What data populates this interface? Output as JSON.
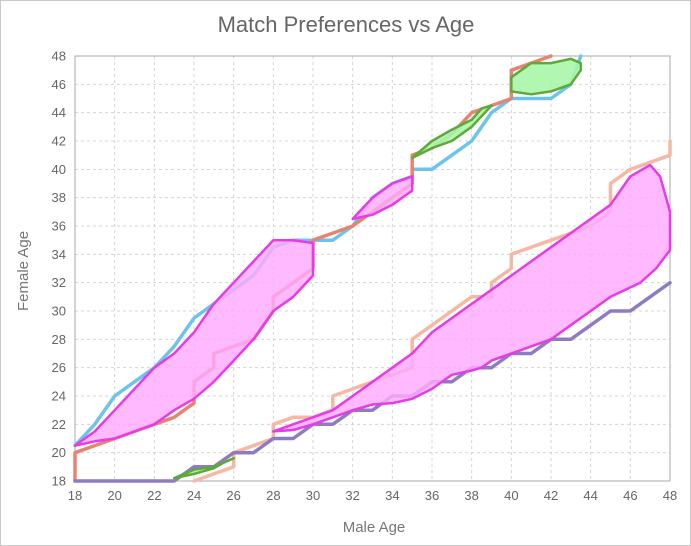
{
  "chart_data": {
    "type": "area",
    "title": "Match Preferences vs Age",
    "xlabel": "Male Age",
    "ylabel": "Female Age",
    "xlim": [
      18,
      48
    ],
    "ylim": [
      18,
      48
    ],
    "xticks": [
      18,
      20,
      22,
      24,
      26,
      28,
      30,
      32,
      34,
      36,
      38,
      40,
      42,
      44,
      46,
      48
    ],
    "yticks": [
      18,
      20,
      22,
      24,
      26,
      28,
      30,
      32,
      34,
      36,
      38,
      40,
      42,
      44,
      46,
      48
    ],
    "grid": true,
    "colors": {
      "blue": "#6ec3ec",
      "salmon_dark": "#e7836f",
      "salmon_light": "#f5b8a4",
      "purple": "#8e7cc3",
      "green_edge": "#5fa83a",
      "green_fill": "#a8f5a8",
      "magenta_edge": "#e63ce6",
      "magenta_fill": "#ffaaff"
    },
    "lines": [
      {
        "color_key": "blue",
        "points": [
          [
            18,
            20.5
          ],
          [
            19,
            22
          ],
          [
            20,
            24
          ],
          [
            21,
            25
          ],
          [
            22,
            26
          ],
          [
            23,
            27.5
          ],
          [
            24,
            29.5
          ],
          [
            25,
            30.5
          ],
          [
            26,
            31.5
          ],
          [
            27,
            32.5
          ],
          [
            28,
            34.5
          ],
          [
            29,
            35
          ],
          [
            30,
            35
          ],
          [
            31,
            35
          ],
          [
            32,
            36
          ],
          [
            33,
            38
          ],
          [
            34,
            39
          ],
          [
            35,
            39.5
          ]
        ]
      },
      {
        "color_key": "blue",
        "points": [
          [
            35,
            40
          ],
          [
            36,
            40
          ],
          [
            37,
            41
          ],
          [
            38,
            42
          ],
          [
            39,
            44
          ],
          [
            40,
            45
          ],
          [
            41,
            45
          ],
          [
            42,
            45
          ],
          [
            43,
            46
          ],
          [
            43.5,
            48
          ]
        ]
      },
      {
        "color_key": "salmon_dark",
        "points": [
          [
            18,
            18
          ],
          [
            18,
            20
          ],
          [
            19,
            20.5
          ],
          [
            20,
            21
          ],
          [
            21,
            21.5
          ],
          [
            22,
            22
          ],
          [
            23,
            22.5
          ],
          [
            24,
            23.5
          ],
          [
            24,
            25
          ],
          [
            25,
            26
          ],
          [
            25,
            27
          ],
          [
            26,
            27.5
          ],
          [
            27,
            28
          ],
          [
            28,
            30
          ],
          [
            28,
            31
          ],
          [
            29,
            32
          ],
          [
            30,
            33
          ],
          [
            30,
            35
          ],
          [
            31,
            35.5
          ],
          [
            32,
            36
          ],
          [
            33,
            37
          ],
          [
            34,
            38
          ],
          [
            35,
            39
          ],
          [
            35,
            41
          ],
          [
            36,
            41.5
          ],
          [
            37,
            42.5
          ],
          [
            38,
            44
          ],
          [
            39,
            44.5
          ],
          [
            40,
            45
          ],
          [
            40,
            47
          ],
          [
            41,
            47.5
          ],
          [
            42,
            48
          ]
        ]
      },
      {
        "color_key": "salmon_light",
        "points": [
          [
            24,
            18
          ],
          [
            25,
            18.5
          ],
          [
            26,
            19
          ],
          [
            26,
            20
          ],
          [
            27,
            20.5
          ],
          [
            28,
            21
          ],
          [
            28,
            22
          ],
          [
            29,
            22.5
          ],
          [
            30,
            22.5
          ],
          [
            31,
            23
          ],
          [
            31,
            24
          ],
          [
            32,
            24.5
          ],
          [
            33,
            25
          ],
          [
            34,
            25.5
          ],
          [
            35,
            26
          ],
          [
            35,
            28
          ],
          [
            36,
            29
          ],
          [
            37,
            30
          ],
          [
            38,
            31
          ],
          [
            39,
            31
          ],
          [
            39,
            32
          ],
          [
            40,
            33
          ],
          [
            40,
            34
          ],
          [
            41,
            34.5
          ],
          [
            42,
            35
          ],
          [
            43,
            35.5
          ],
          [
            44,
            36
          ],
          [
            45,
            37
          ],
          [
            45,
            39
          ],
          [
            46,
            40
          ],
          [
            47,
            40.5
          ],
          [
            48,
            41
          ],
          [
            48,
            42
          ]
        ]
      },
      {
        "color_key": "purple",
        "points": [
          [
            18,
            18
          ],
          [
            19,
            18
          ],
          [
            20,
            18
          ],
          [
            21,
            18
          ],
          [
            22,
            18
          ],
          [
            23,
            18
          ],
          [
            24,
            19
          ],
          [
            25,
            19
          ],
          [
            26,
            20
          ],
          [
            27,
            20
          ],
          [
            28,
            21
          ],
          [
            29,
            21
          ],
          [
            30,
            22
          ],
          [
            31,
            22
          ],
          [
            32,
            23
          ],
          [
            33,
            23
          ],
          [
            34,
            24
          ],
          [
            35,
            24
          ],
          [
            36,
            25
          ],
          [
            37,
            25
          ],
          [
            38,
            26
          ],
          [
            39,
            26
          ],
          [
            40,
            27
          ],
          [
            41,
            27
          ],
          [
            42,
            28
          ],
          [
            43,
            28
          ],
          [
            44,
            29
          ],
          [
            45,
            30
          ],
          [
            46,
            30
          ],
          [
            47,
            31
          ],
          [
            48,
            32
          ]
        ]
      }
    ],
    "regions": [
      {
        "kind": "magenta",
        "points": [
          [
            18,
            20.5
          ],
          [
            19,
            21.5
          ],
          [
            20,
            23
          ],
          [
            21,
            24.5
          ],
          [
            22,
            26
          ],
          [
            23,
            27
          ],
          [
            24,
            28.5
          ],
          [
            25,
            30.5
          ],
          [
            26,
            32
          ],
          [
            27,
            33.5
          ],
          [
            28,
            35
          ],
          [
            29,
            35
          ],
          [
            30,
            34.8
          ],
          [
            30,
            32.5
          ],
          [
            29,
            31
          ],
          [
            28,
            30
          ],
          [
            27,
            28
          ],
          [
            26,
            26.5
          ],
          [
            25,
            25
          ],
          [
            24,
            23.8
          ],
          [
            23,
            23
          ],
          [
            22,
            22
          ],
          [
            21,
            21.5
          ],
          [
            20,
            21
          ],
          [
            19,
            20.8
          ],
          [
            18,
            20.5
          ]
        ]
      },
      {
        "kind": "magenta",
        "points": [
          [
            28,
            21.5
          ],
          [
            29,
            22
          ],
          [
            30,
            22.5
          ],
          [
            31,
            23
          ],
          [
            32,
            24
          ],
          [
            33,
            25
          ],
          [
            34,
            26
          ],
          [
            35,
            27
          ],
          [
            36,
            28.5
          ],
          [
            37,
            29.5
          ],
          [
            38,
            30.5
          ],
          [
            39,
            31.5
          ],
          [
            40,
            32.5
          ],
          [
            41,
            33.5
          ],
          [
            42,
            34.5
          ],
          [
            43,
            35.5
          ],
          [
            44,
            36.5
          ],
          [
            45,
            37.5
          ],
          [
            46,
            39.5
          ],
          [
            47,
            40.3
          ],
          [
            47.5,
            39.5
          ],
          [
            48,
            37
          ],
          [
            48,
            34.3
          ],
          [
            47.3,
            33
          ],
          [
            46.5,
            32
          ],
          [
            45,
            31
          ],
          [
            44,
            30
          ],
          [
            43,
            29
          ],
          [
            42,
            28
          ],
          [
            41,
            27.5
          ],
          [
            40,
            27
          ],
          [
            39,
            26.5
          ],
          [
            38.5,
            26
          ],
          [
            38,
            25.8
          ],
          [
            37,
            25.5
          ],
          [
            36,
            24.5
          ],
          [
            35,
            23.8
          ],
          [
            34,
            23.5
          ],
          [
            33,
            23.4
          ],
          [
            32,
            23
          ],
          [
            31,
            22.5
          ],
          [
            30,
            22
          ],
          [
            29,
            21.6
          ],
          [
            28,
            21.5
          ]
        ]
      },
      {
        "kind": "magenta",
        "points": [
          [
            32,
            36.5
          ],
          [
            33,
            38
          ],
          [
            34,
            39
          ],
          [
            35,
            39.5
          ],
          [
            35,
            38.5
          ],
          [
            34,
            37.5
          ],
          [
            33,
            36.8
          ],
          [
            32,
            36.5
          ]
        ]
      },
      {
        "kind": "green",
        "points": [
          [
            23,
            18.2
          ],
          [
            24,
            18.8
          ],
          [
            25,
            19
          ],
          [
            26,
            19.6
          ],
          [
            25.5,
            19.3
          ],
          [
            25,
            18.9
          ],
          [
            24,
            18.5
          ],
          [
            23,
            18.2
          ]
        ]
      },
      {
        "kind": "green",
        "points": [
          [
            35,
            40.8
          ],
          [
            36,
            41.5
          ],
          [
            37,
            42
          ],
          [
            38,
            43
          ],
          [
            39,
            44.5
          ],
          [
            38.5,
            44.3
          ],
          [
            38,
            43.5
          ],
          [
            37,
            42.8
          ],
          [
            36,
            42
          ],
          [
            35,
            40.8
          ]
        ]
      },
      {
        "kind": "green",
        "points": [
          [
            40,
            45.5
          ],
          [
            40,
            46.5
          ],
          [
            41,
            47.5
          ],
          [
            42,
            47.5
          ],
          [
            43,
            47.8
          ],
          [
            43.5,
            47.5
          ],
          [
            43.5,
            47
          ],
          [
            43,
            46
          ],
          [
            42,
            45.5
          ],
          [
            41,
            45.3
          ],
          [
            40,
            45.5
          ]
        ]
      }
    ]
  }
}
